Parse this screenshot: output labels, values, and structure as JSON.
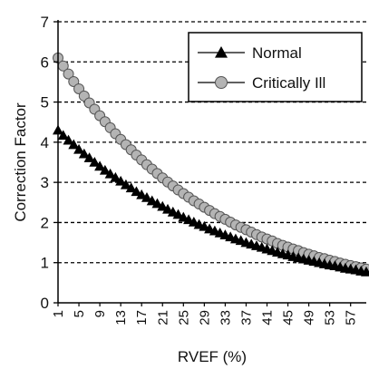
{
  "chart_data": {
    "type": "line",
    "title": "",
    "xlabel": "RVEF (%)",
    "ylabel": "Correction Factor",
    "xlim": [
      1,
      60
    ],
    "ylim": [
      0,
      7
    ],
    "yticks": [
      "0",
      "1",
      "2",
      "3",
      "4",
      "5",
      "6",
      "7"
    ],
    "xticks": [
      "1",
      "5",
      "9",
      "13",
      "17",
      "21",
      "25",
      "29",
      "33",
      "37",
      "41",
      "45",
      "49",
      "53",
      "57"
    ],
    "grid": "horizontal dashed",
    "legend_position": "top-right",
    "x": [
      1,
      2,
      3,
      4,
      5,
      6,
      7,
      8,
      9,
      10,
      11,
      12,
      13,
      14,
      15,
      16,
      17,
      18,
      19,
      20,
      21,
      22,
      23,
      24,
      25,
      26,
      27,
      28,
      29,
      30,
      31,
      32,
      33,
      34,
      35,
      36,
      37,
      38,
      39,
      40,
      41,
      42,
      43,
      44,
      45,
      46,
      47,
      48,
      49,
      50,
      51,
      52,
      53,
      54,
      55,
      56,
      57,
      58,
      59,
      60
    ],
    "series": [
      {
        "name": "Normal",
        "marker": "triangle",
        "color": "#000000",
        "values": [
          4.3,
          4.17,
          4.05,
          3.94,
          3.82,
          3.71,
          3.61,
          3.5,
          3.4,
          3.3,
          3.21,
          3.12,
          3.03,
          2.94,
          2.86,
          2.77,
          2.69,
          2.62,
          2.54,
          2.47,
          2.4,
          2.33,
          2.26,
          2.2,
          2.13,
          2.07,
          2.01,
          1.95,
          1.9,
          1.84,
          1.79,
          1.74,
          1.69,
          1.64,
          1.59,
          1.55,
          1.5,
          1.46,
          1.42,
          1.38,
          1.34,
          1.3,
          1.26,
          1.22,
          1.19,
          1.15,
          1.12,
          1.09,
          1.06,
          1.03,
          1.0,
          0.97,
          0.94,
          0.92,
          0.89,
          0.86,
          0.84,
          0.82,
          0.79,
          0.77
        ]
      },
      {
        "name": "Critically Ill",
        "marker": "circle",
        "color": "#b4b4b4",
        "values": [
          6.1,
          5.9,
          5.7,
          5.51,
          5.33,
          5.15,
          4.98,
          4.82,
          4.66,
          4.51,
          4.36,
          4.21,
          4.07,
          3.94,
          3.81,
          3.68,
          3.56,
          3.44,
          3.33,
          3.22,
          3.11,
          3.01,
          2.91,
          2.81,
          2.72,
          2.63,
          2.54,
          2.46,
          2.38,
          2.3,
          2.22,
          2.15,
          2.08,
          2.01,
          1.94,
          1.88,
          1.82,
          1.76,
          1.7,
          1.64,
          1.59,
          1.54,
          1.48,
          1.43,
          1.39,
          1.34,
          1.3,
          1.25,
          1.21,
          1.17,
          1.13,
          1.1,
          1.06,
          1.03,
          0.99,
          0.96,
          0.93,
          0.9,
          0.87,
          0.84
        ]
      }
    ]
  }
}
